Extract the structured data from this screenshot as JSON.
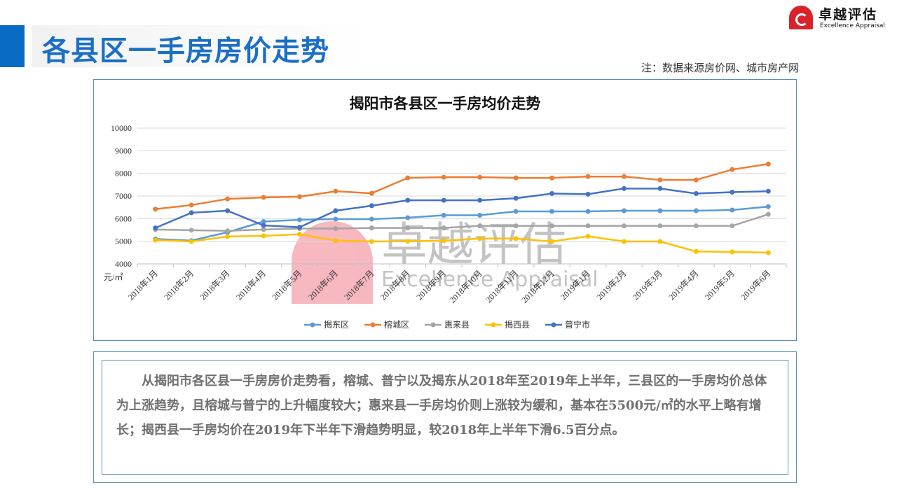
{
  "header": {
    "title": "各县区一手房房价走势",
    "source_note": "注：数据来源房价网、城市房产网"
  },
  "logo": {
    "cn": "卓越评估",
    "en": "Excellence Appraisal"
  },
  "watermark": {
    "cn": "卓越评估",
    "en": "Excellence Appraisal"
  },
  "chart_data": {
    "type": "line",
    "title": "揭阳市各县区一手房均价走势",
    "ylabel": "元/㎡",
    "xlabel": "",
    "ylim": [
      4000,
      10000
    ],
    "yticks": [
      4000,
      5000,
      6000,
      7000,
      8000,
      9000,
      10000
    ],
    "grid": true,
    "legend": "bottom",
    "categories": [
      "2018年1月",
      "2018年2月",
      "2018年3月",
      "2018年4月",
      "2018年5月",
      "2018年6月",
      "2018年7月",
      "2018年8月",
      "2018年9月",
      "2018年10月",
      "2018年11月",
      "2018年12月",
      "2019年1月",
      "2019年2月",
      "2019年3月",
      "2019年4月",
      "2019年5月",
      "2019年6月"
    ],
    "series": [
      {
        "name": "揭东区",
        "color": "#5b9bd5",
        "values": [
          5100,
          5030,
          5400,
          5870,
          5950,
          5980,
          5980,
          6040,
          6150,
          6150,
          6320,
          6320,
          6320,
          6350,
          6350,
          6350,
          6380,
          6530
        ]
      },
      {
        "name": "榕城区",
        "color": "#ed7d31",
        "values": [
          6420,
          6600,
          6870,
          6940,
          6970,
          7210,
          7120,
          7800,
          7830,
          7830,
          7800,
          7800,
          7860,
          7860,
          7710,
          7710,
          8170,
          8410
        ]
      },
      {
        "name": "惠来县",
        "color": "#a5a5a5",
        "values": [
          5520,
          5490,
          5460,
          5520,
          5560,
          5560,
          5590,
          5590,
          5590,
          5680,
          5680,
          5680,
          5680,
          5680,
          5680,
          5680,
          5680,
          6190
        ]
      },
      {
        "name": "揭西县",
        "color": "#ffc000",
        "values": [
          5050,
          4990,
          5210,
          5240,
          5310,
          5030,
          4990,
          5000,
          5020,
          5120,
          5120,
          4990,
          5220,
          4990,
          4990,
          4550,
          4530,
          4500
        ]
      },
      {
        "name": "普宁市",
        "color": "#4472c4",
        "values": [
          5590,
          6260,
          6350,
          5700,
          5620,
          6350,
          6570,
          6810,
          6810,
          6810,
          6900,
          7110,
          7080,
          7330,
          7330,
          7110,
          7170,
          7210
        ]
      }
    ]
  },
  "summary": "从揭阳市各区县一手房房价走势看，榕城、普宁以及揭东从2018年至2019年上半年，三县区的一手房均价总体为上涨趋势，且榕城与普宁的上升幅度较大；惠来县一手房均价则上涨较为缓和，基本在5500元/㎡的水平上略有增长；揭西县一手房均价在2019年下半年下滑趋势明显，较2018年上半年下滑6.5百分点。"
}
